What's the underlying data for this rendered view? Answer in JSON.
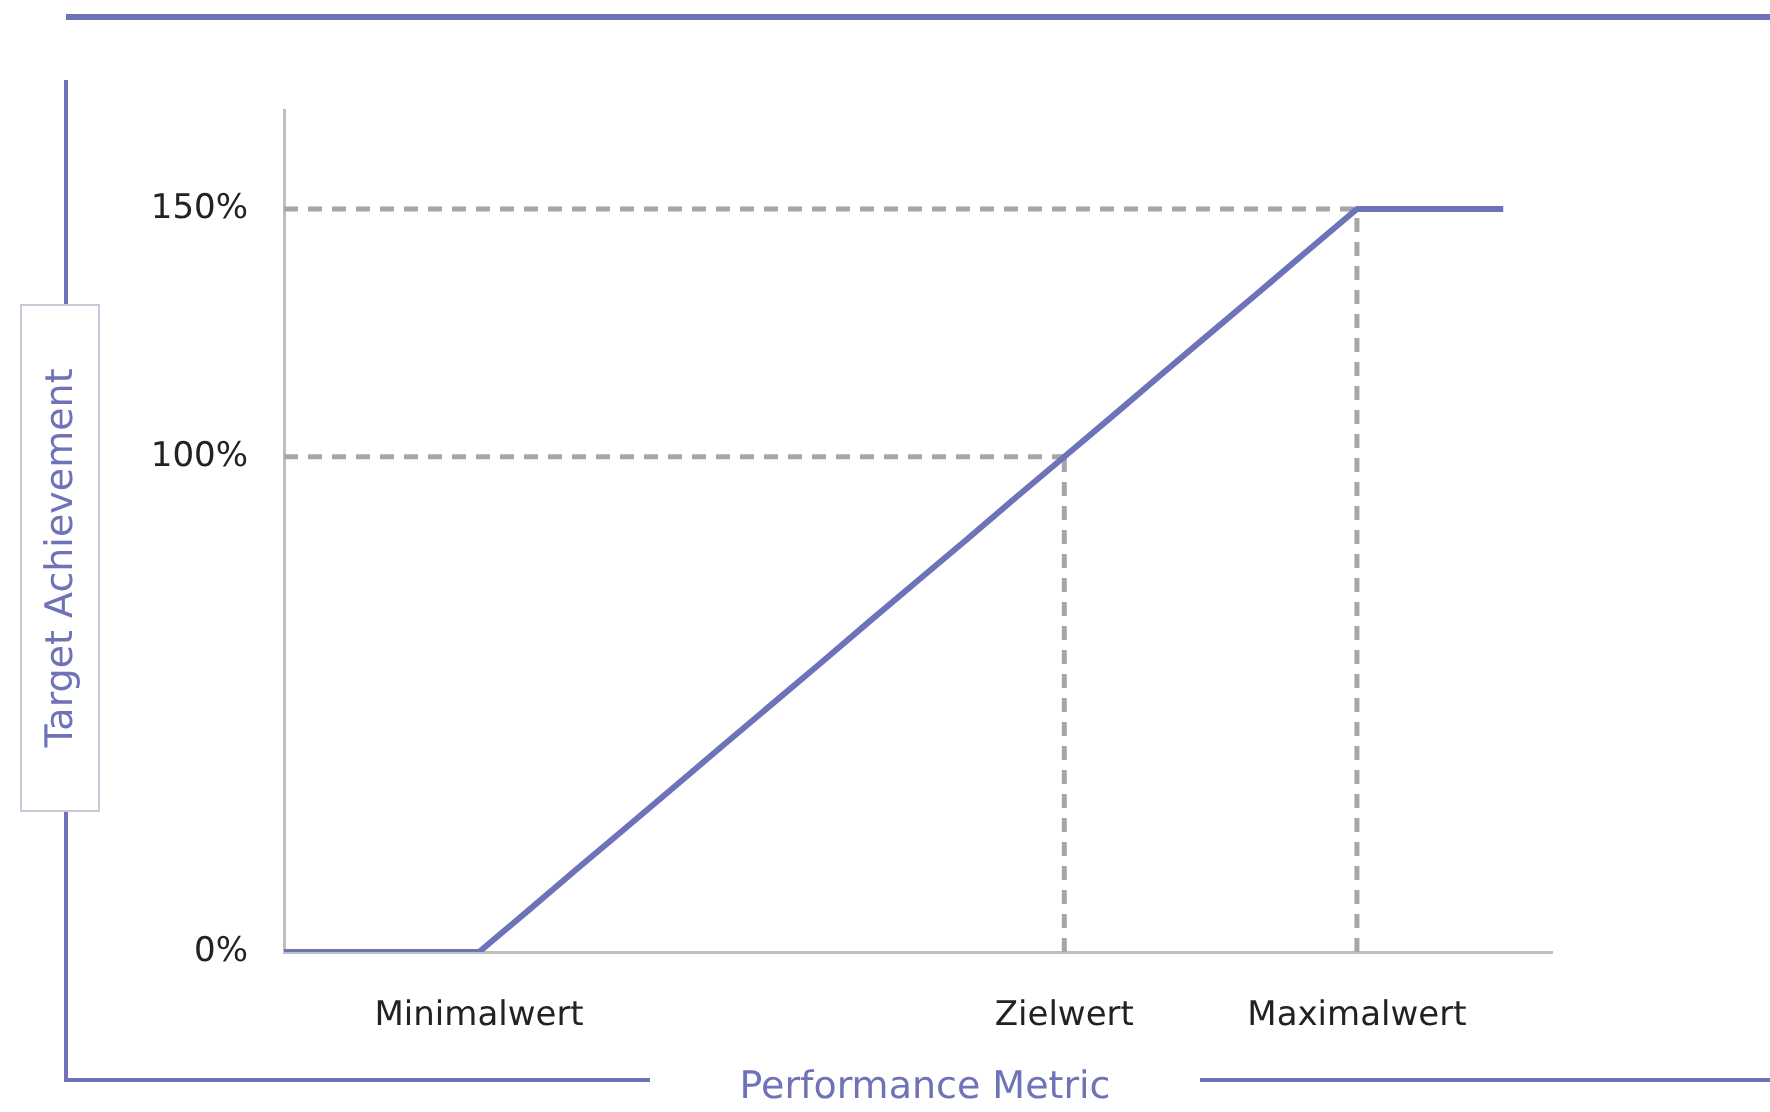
{
  "chart_data": {
    "type": "line",
    "xlabel": "Performance Metric",
    "ylabel": "Target Achievement",
    "categories": [
      null,
      null,
      null,
      null,
      "Minimalwert",
      null,
      null,
      null,
      null,
      null,
      null,
      null,
      null,
      null,
      null,
      null,
      "Zielwert",
      null,
      null,
      null,
      null,
      null,
      "Maximalwert",
      null,
      null,
      null,
      null
    ],
    "ylim": [
      0,
      170
    ],
    "yticks": [
      {
        "value": 0,
        "label": "0%"
      },
      {
        "value": 100,
        "label": "100%"
      },
      {
        "value": 150,
        "label": "150%"
      }
    ],
    "grid": false,
    "legend": false,
    "marker": "none",
    "line_style": "solid",
    "series": [
      {
        "color": "#6e72b8",
        "values": [
          0,
          0,
          0,
          0,
          0,
          8.3,
          16.7,
          25,
          33.3,
          41.7,
          50,
          58.3,
          66.7,
          75,
          83.3,
          91.7,
          100,
          108.3,
          116.7,
          125,
          133.3,
          141.7,
          150,
          150,
          150,
          150,
          null
        ]
      }
    ],
    "ref_lines": [
      {
        "axis": "y",
        "value": 100,
        "color": "#a6a6a6",
        "line_style": "dashed"
      },
      {
        "axis": "y",
        "value": 150,
        "color": "#a6a6a6",
        "line_style": "dashed"
      },
      {
        "axis": "x",
        "value": "Zielwert",
        "color": "#a6a6a6",
        "line_style": "dashed"
      },
      {
        "axis": "x",
        "value": "Maximalwert",
        "color": "#a6a6a6",
        "line_style": "dashed"
      }
    ]
  }
}
